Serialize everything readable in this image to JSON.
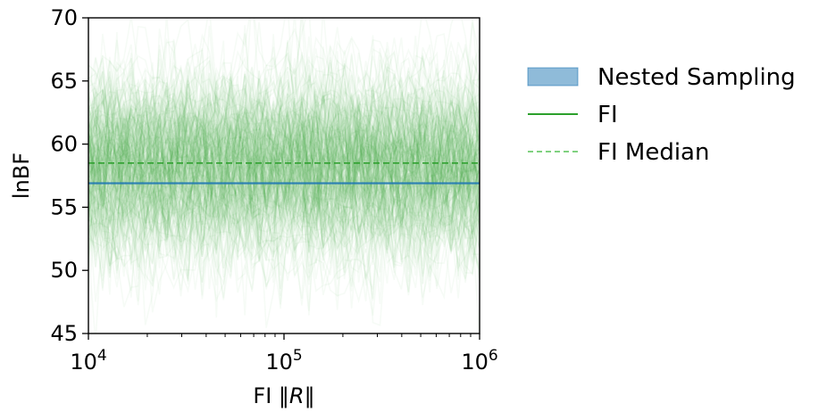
{
  "chart_data": {
    "type": "line",
    "title": "",
    "xlabel_prefix": "FI ",
    "xlabel_norm": "‖R‖",
    "ylabel": "lnBF",
    "x_scale": "log",
    "xlim": [
      10000,
      1000000
    ],
    "ylim": [
      45,
      70
    ],
    "x_ticks": [
      {
        "value": 10000,
        "base": "10",
        "exp": "4"
      },
      {
        "value": 100000,
        "base": "10",
        "exp": "5"
      },
      {
        "value": 1000000,
        "base": "10",
        "exp": "6"
      }
    ],
    "y_ticks": [
      {
        "value": 45,
        "label": "45"
      },
      {
        "value": 50,
        "label": "50"
      },
      {
        "value": 55,
        "label": "55"
      },
      {
        "value": 60,
        "label": "60"
      },
      {
        "value": 65,
        "label": "65"
      },
      {
        "value": 70,
        "label": "70"
      }
    ],
    "grid": false,
    "legend_position": "outside right, top",
    "nested_sampling": {
      "name": "Nested Sampling",
      "value": 56.9,
      "band": [
        56.8,
        57.0
      ],
      "color": "#1f77b4"
    },
    "fi_realizations": {
      "name": "FI",
      "color": "#2ca02c",
      "mean": 58.5,
      "sd": 3.6
    },
    "fi_median": {
      "name": "FI Median",
      "value": 58.5,
      "color": "#2ca02c"
    }
  },
  "legend": {
    "items": [
      {
        "key": "nested",
        "label": "Nested Sampling",
        "style": "patch",
        "color": "#1f77b4"
      },
      {
        "key": "fi",
        "label": "FI",
        "style": "solid",
        "color": "#2ca02c"
      },
      {
        "key": "median",
        "label": "FI Median",
        "style": "dashed",
        "color": "#7fd17f"
      }
    ]
  }
}
